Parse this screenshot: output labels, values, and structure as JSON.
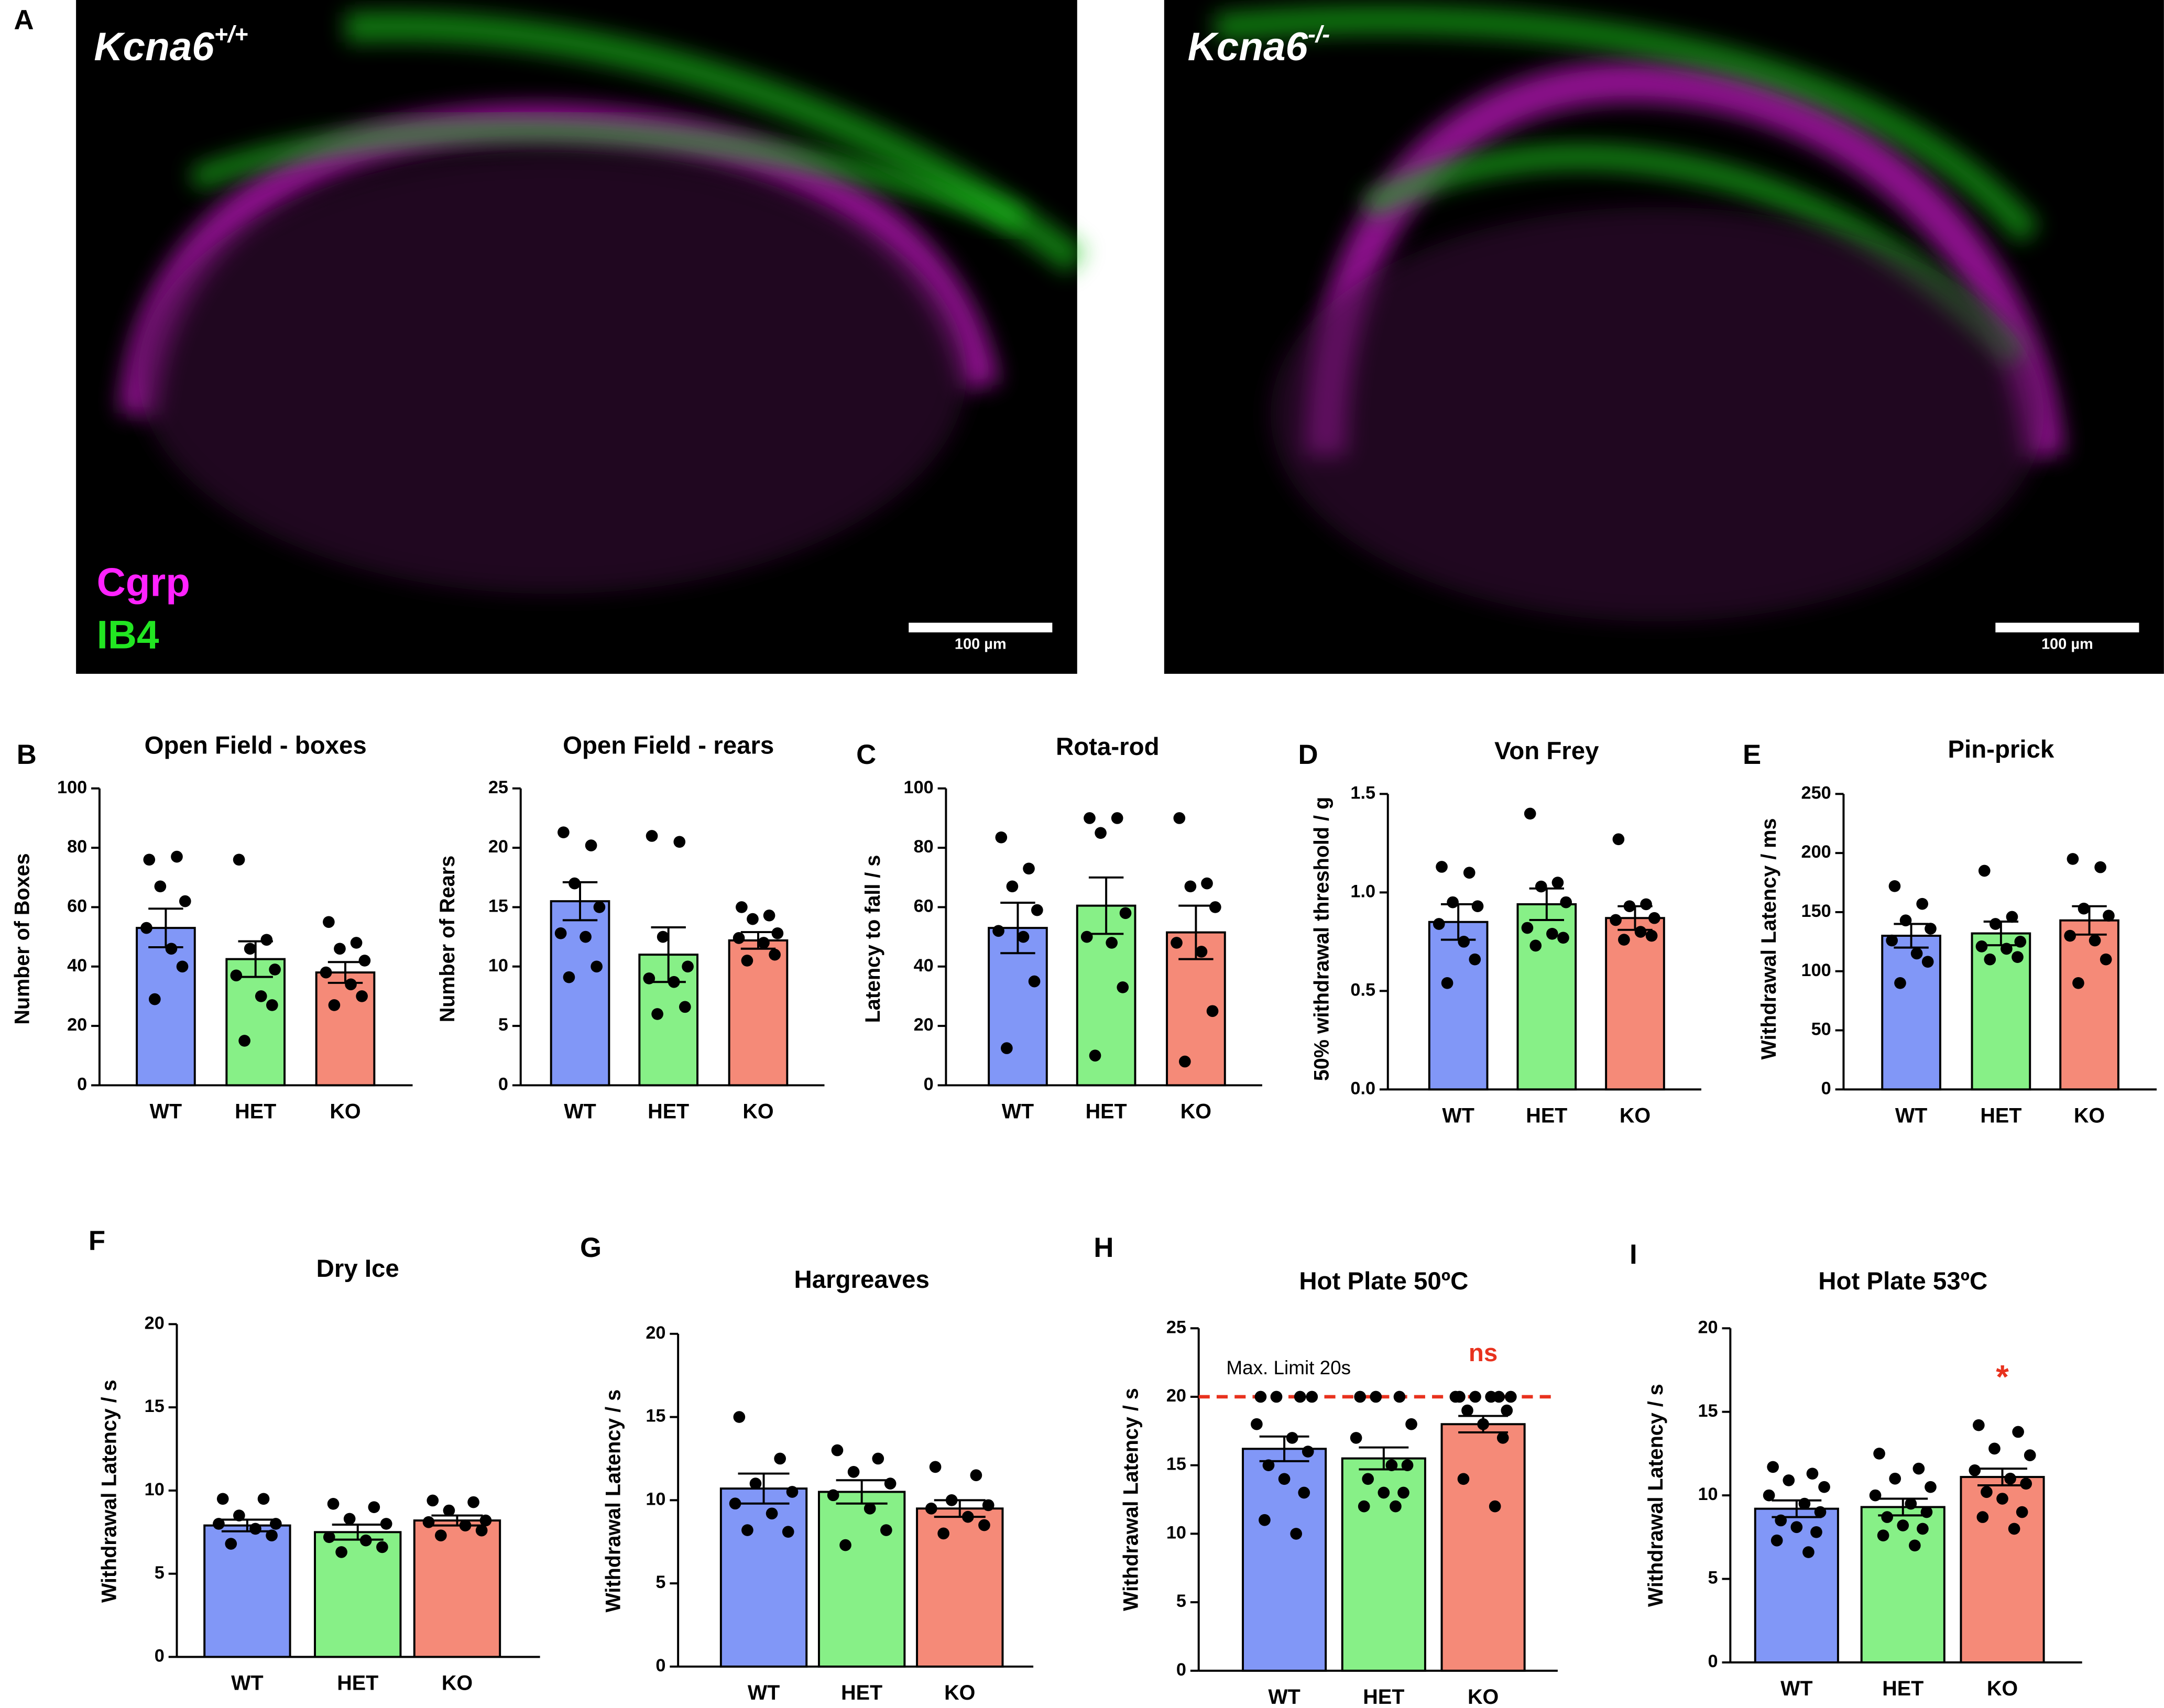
{
  "images": [
    {
      "panel": "A",
      "gene": "Kcna6",
      "genotype": "+/+",
      "markers": [
        {
          "text": "Cgrp",
          "color": "#ff22ff"
        },
        {
          "text": "IB4",
          "color": "#22e622"
        }
      ],
      "scale_bar": "100 µm"
    },
    {
      "gene": "Kcna6",
      "genotype": "-/-",
      "scale_bar": "100 µm"
    }
  ],
  "chart_data": [
    {
      "type": "bar",
      "panel": "B",
      "title": "Open Field - boxes",
      "y_label": "Number of Boxes",
      "categories": [
        "WT",
        "HET",
        "KO"
      ],
      "colors": [
        "#8197f7",
        "#87f087",
        "#f58a78"
      ],
      "values": [
        53,
        42.5,
        38
      ],
      "errors": [
        6.5,
        6,
        3.5
      ],
      "points": [
        [
          76,
          77,
          67,
          62,
          53,
          46,
          40,
          29
        ],
        [
          76,
          49,
          46,
          39,
          37,
          30,
          27,
          15
        ],
        [
          55,
          48,
          46,
          42,
          38,
          34,
          30,
          27
        ]
      ],
      "ylim": [
        0,
        100
      ],
      "yticks": [
        0,
        20,
        40,
        60,
        80,
        100
      ]
    },
    {
      "type": "bar",
      "title": "Open Field - rears",
      "y_label": "Number of Rears",
      "categories": [
        "WT",
        "HET",
        "KO"
      ],
      "colors": [
        "#8197f7",
        "#87f087",
        "#f58a78"
      ],
      "values": [
        15.5,
        11,
        12.2
      ],
      "errors": [
        1.6,
        2.3,
        0.7
      ],
      "points": [
        [
          21.3,
          20.2,
          17,
          15,
          12.8,
          12.5,
          10,
          9.1
        ],
        [
          21,
          20.5,
          12.5,
          10,
          9,
          8.7,
          6.6,
          6
        ],
        [
          15,
          14.3,
          14,
          12.8,
          12.4,
          12,
          11,
          10.5
        ]
      ],
      "ylim": [
        0,
        25
      ],
      "yticks": [
        0,
        5,
        10,
        15,
        20,
        25
      ]
    },
    {
      "type": "bar",
      "panel": "C",
      "title": "Rota-rod",
      "y_label": "Latency to fall / s",
      "categories": [
        "WT",
        "HET",
        "KO"
      ],
      "colors": [
        "#8197f7",
        "#87f087",
        "#f58a78"
      ],
      "values": [
        53,
        60.5,
        51.5
      ],
      "errors": [
        8.5,
        9.5,
        9
      ],
      "points": [
        [
          83.5,
          73,
          67,
          59,
          52,
          50,
          35,
          12.5
        ],
        [
          90,
          90,
          85,
          58,
          50,
          48,
          33,
          10
        ],
        [
          90,
          68,
          67,
          60,
          48,
          45,
          25,
          8
        ]
      ],
      "ylim": [
        0,
        100
      ],
      "yticks": [
        0,
        20,
        40,
        60,
        80,
        100
      ]
    },
    {
      "type": "bar",
      "panel": "D",
      "title": "Von Frey",
      "y_label": "50% withdrawal threshold / g",
      "categories": [
        "WT",
        "HET",
        "KO"
      ],
      "colors": [
        "#8197f7",
        "#87f087",
        "#f58a78"
      ],
      "values": [
        0.85,
        0.94,
        0.87
      ],
      "errors": [
        0.09,
        0.08,
        0.06
      ],
      "points": [
        [
          1.13,
          1.1,
          0.95,
          0.93,
          0.84,
          0.75,
          0.66,
          0.54
        ],
        [
          1.4,
          1.05,
          1.03,
          0.95,
          0.82,
          0.79,
          0.77,
          0.73
        ],
        [
          1.27,
          0.94,
          0.93,
          0.87,
          0.86,
          0.8,
          0.78,
          0.76
        ]
      ],
      "ylim": [
        0,
        1.5
      ],
      "yticks": [
        {
          "value": 0,
          "label": "0.0"
        },
        0.5,
        {
          "value": 1,
          "label": "1.0"
        },
        1.5
      ]
    },
    {
      "type": "bar",
      "panel": "E",
      "title": "Pin-prick",
      "y_label": "Withdrawal Latency / ms",
      "categories": [
        "WT",
        "HET",
        "KO"
      ],
      "colors": [
        "#8197f7",
        "#87f087",
        "#f58a78"
      ],
      "values": [
        130,
        132,
        143
      ],
      "errors": [
        10,
        10,
        12
      ],
      "points": [
        [
          172,
          157,
          143,
          136,
          126,
          115,
          108,
          90
        ],
        [
          185,
          146,
          140,
          125,
          121,
          119,
          112,
          110
        ],
        [
          195,
          188,
          153,
          147,
          130,
          126,
          110,
          90
        ]
      ],
      "ylim": [
        0,
        250
      ],
      "yticks": [
        0,
        50,
        100,
        150,
        200,
        250
      ]
    },
    {
      "type": "bar",
      "panel": "F",
      "title": "Dry Ice",
      "y_label": "Withdrawal Latency / s",
      "categories": [
        "WT",
        "HET",
        "KO"
      ],
      "colors": [
        "#8197f7",
        "#87f087",
        "#f58a78"
      ],
      "values": [
        7.9,
        7.5,
        8.2
      ],
      "errors": [
        0.35,
        0.45,
        0.3
      ],
      "points": [
        [
          9.5,
          9.5,
          8.5,
          8,
          8,
          7.7,
          7.3,
          6.8
        ],
        [
          9.2,
          9,
          8.3,
          8,
          7.2,
          7,
          6.6,
          6.3
        ],
        [
          9.4,
          9.3,
          8.8,
          8.2,
          8.1,
          7.9,
          7.6,
          7.3
        ]
      ],
      "ylim": [
        0,
        20
      ],
      "yticks": [
        0,
        5,
        10,
        15,
        20
      ]
    },
    {
      "type": "bar",
      "panel": "G",
      "title": "Hargreaves",
      "y_label": "Withdrawal Latency / s",
      "categories": [
        "WT",
        "HET",
        "KO"
      ],
      "colors": [
        "#8197f7",
        "#87f087",
        "#f58a78"
      ],
      "values": [
        10.7,
        10.5,
        9.5
      ],
      "errors": [
        0.9,
        0.7,
        0.5
      ],
      "points": [
        [
          15,
          12.5,
          11,
          10.5,
          9.8,
          9.2,
          8.1,
          8.2
        ],
        [
          13,
          12.5,
          11.7,
          11,
          10.3,
          9.5,
          8.2,
          7.3
        ],
        [
          12,
          11.5,
          10,
          9.7,
          9.5,
          9,
          8.5,
          8
        ]
      ],
      "ylim": [
        0,
        20
      ],
      "yticks": [
        0,
        5,
        10,
        15,
        20
      ]
    },
    {
      "type": "bar",
      "panel": "H",
      "title": "Hot Plate 50ºC",
      "y_label": "Withdrawal Latency / s",
      "categories": [
        "WT",
        "HET",
        "KO"
      ],
      "colors": [
        "#8197f7",
        "#87f087",
        "#f58a78"
      ],
      "values": [
        16.2,
        15.5,
        18
      ],
      "errors": [
        0.9,
        0.8,
        0.6
      ],
      "points": [
        [
          20,
          20,
          20,
          20,
          18,
          17,
          16,
          15,
          14,
          13,
          11,
          10
        ],
        [
          20,
          20,
          20,
          18,
          17,
          15,
          15,
          14,
          13,
          13,
          12,
          12
        ],
        [
          20,
          20,
          20,
          20,
          20,
          20,
          19,
          19,
          18,
          17,
          14,
          12
        ]
      ],
      "ylim": [
        0,
        25
      ],
      "yticks": [
        0,
        5,
        10,
        15,
        20,
        25
      ],
      "ref_line": {
        "value": 20,
        "label": "Max. Limit 20s",
        "color": "#e8321e"
      },
      "annotations": [
        {
          "text": "ns",
          "category": "KO",
          "color": "#e8321e"
        }
      ]
    },
    {
      "type": "bar",
      "panel": "I",
      "title": "Hot Plate 53ºC",
      "y_label": "Withdrawal Latency / s",
      "categories": [
        "WT",
        "HET",
        "KO"
      ],
      "colors": [
        "#8197f7",
        "#87f087",
        "#f58a78"
      ],
      "values": [
        9.2,
        9.3,
        11.1
      ],
      "errors": [
        0.5,
        0.5,
        0.5
      ],
      "points": [
        [
          11.7,
          11.3,
          10.9,
          10.5,
          10,
          9.5,
          9,
          8.5,
          8.1,
          7.8,
          7.3,
          6.6
        ],
        [
          12.5,
          11.6,
          11,
          10.5,
          10,
          9.5,
          9,
          8.7,
          8.2,
          8,
          7.6,
          7
        ],
        [
          14.2,
          13.8,
          12.8,
          12.4,
          11.5,
          11,
          10.7,
          10.2,
          9.8,
          9,
          8.7,
          8
        ]
      ],
      "ylim": [
        0,
        20
      ],
      "yticks": [
        0,
        5,
        10,
        15,
        20
      ],
      "annotations": [
        {
          "text": "*",
          "category": "KO",
          "color": "#e8321e"
        }
      ]
    }
  ]
}
